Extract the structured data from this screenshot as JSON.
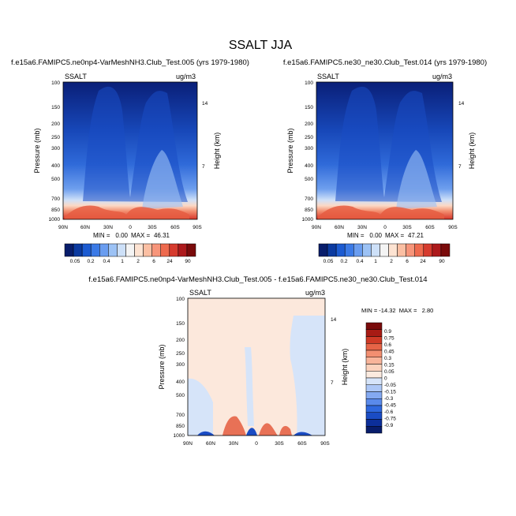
{
  "figure": {
    "title": "SSALT JJA"
  },
  "colors": {
    "abs_scale": [
      "#081d6b",
      "#0b3aa0",
      "#1c5bd1",
      "#3b7ae6",
      "#6a9df0",
      "#9cc2f5",
      "#cde0f8",
      "#f4f4f4",
      "#fde3d2",
      "#fbbfa3",
      "#f7957a",
      "#ee6a4e",
      "#d63b2e",
      "#ad1a1c",
      "#7a0b0b"
    ],
    "diff_scale": [
      "#081d6b",
      "#0c2f9a",
      "#1a4cc4",
      "#2f68de",
      "#5a8aeb",
      "#84a9f1",
      "#adc7f6",
      "#d6e4f9",
      "#fbeadf",
      "#fbd2bd",
      "#f8b49a",
      "#f28f71",
      "#e66447",
      "#cf3a26",
      "#a81b14",
      "#7a0b0b"
    ]
  },
  "chart_data": [
    {
      "type": "heatmap",
      "title": "f.e15a6.FAMIPC5.ne0np4-VarMeshNH3.Club_Test.005 (yrs 1979-1980)",
      "variable": "SSALT",
      "units": "ug/m3",
      "xlabel": "",
      "ylabel": "Pressure (mb)",
      "ylabel_right": "Height (km)",
      "x_ticks": [
        "90N",
        "60N",
        "30N",
        "0",
        "30S",
        "60S",
        "90S"
      ],
      "y_ticks": [
        "100",
        "150",
        "200",
        "250",
        "300",
        "400",
        "500",
        "700",
        "850",
        "1000"
      ],
      "y_ticks_right": [
        "14",
        "7"
      ],
      "stats": {
        "min_label": "MIN =",
        "min": "0.00",
        "max_label": "MAX =",
        "max": "46.31"
      },
      "colorbar_labels": [
        "0.05",
        "0.2",
        "0.4",
        "1",
        "2",
        "6",
        "24",
        "90"
      ]
    },
    {
      "type": "heatmap",
      "title": "f.e15a6.FAMIPC5.ne30_ne30.Club_Test.014 (yrs 1979-1980)",
      "variable": "SSALT",
      "units": "ug/m3",
      "xlabel": "",
      "ylabel": "Pressure (mb)",
      "ylabel_right": "Height (km)",
      "x_ticks": [
        "90N",
        "60N",
        "30N",
        "0",
        "30S",
        "60S",
        "90S"
      ],
      "y_ticks": [
        "100",
        "150",
        "200",
        "250",
        "300",
        "400",
        "500",
        "700",
        "850",
        "1000"
      ],
      "y_ticks_right": [
        "14",
        "7"
      ],
      "stats": {
        "min_label": "MIN =",
        "min": "0.00",
        "max_label": "MAX =",
        "max": "47.21"
      },
      "colorbar_labels": [
        "0.05",
        "0.2",
        "0.4",
        "1",
        "2",
        "6",
        "24",
        "90"
      ]
    },
    {
      "type": "heatmap",
      "title": "f.e15a6.FAMIPC5.ne0np4-VarMeshNH3.Club_Test.005 - f.e15a6.FAMIPC5.ne30_ne30.Club_Test.014",
      "variable": "SSALT",
      "units": "ug/m3",
      "xlabel": "",
      "ylabel": "Pressure (mb)",
      "ylabel_right": "Height (km)",
      "x_ticks": [
        "90N",
        "60N",
        "30N",
        "0",
        "30S",
        "60S",
        "90S"
      ],
      "y_ticks": [
        "100",
        "150",
        "200",
        "250",
        "300",
        "400",
        "500",
        "700",
        "850",
        "1000"
      ],
      "y_ticks_right": [
        "14",
        "7"
      ],
      "stats": {
        "text": "MIN = -14.32  MAX =   2.80"
      },
      "colorbar_labels": [
        "0.9",
        "0.75",
        "0.6",
        "0.45",
        "0.3",
        "0.15",
        "0.05",
        "0",
        "-0.05",
        "-0.15",
        "-0.3",
        "-0.45",
        "-0.6",
        "-0.75",
        "-0.9"
      ]
    }
  ]
}
